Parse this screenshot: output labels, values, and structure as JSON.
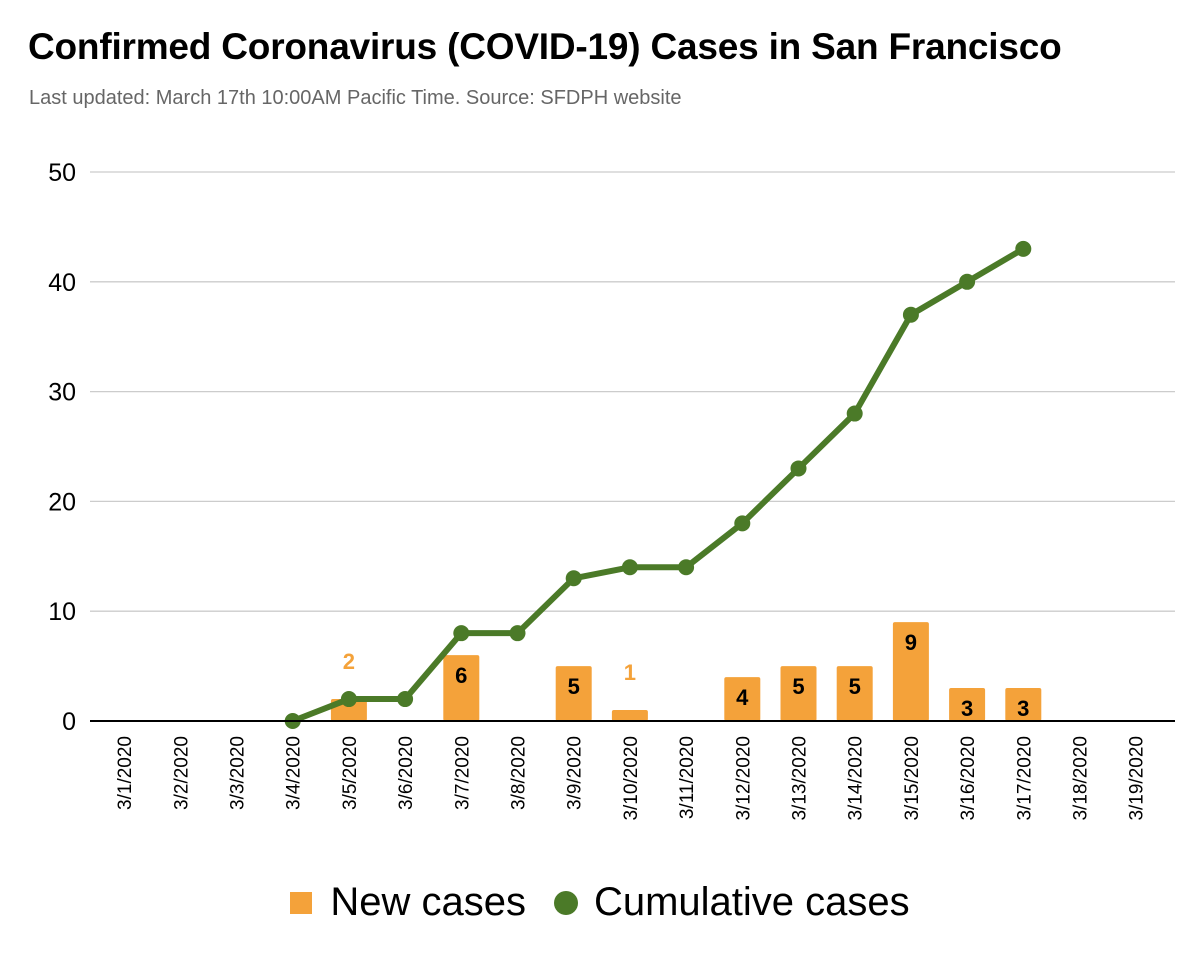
{
  "title": "Confirmed Coronavirus (COVID-19) Cases in San Francisco",
  "subtitle": "Last updated: March 17th 10:00AM Pacific Time. Source: SFDPH website",
  "colors": {
    "bar": "#F4A23A",
    "line": "#4B7A28",
    "grid": "#CCCCCC",
    "axis": "#000000",
    "bar_label_inside": "#000000",
    "bar_label_above": "#F4A23A"
  },
  "legend": {
    "position": "bottom",
    "items": [
      {
        "label": "New cases",
        "marker": "square",
        "color": "#F4A23A"
      },
      {
        "label": "Cumulative cases",
        "marker": "circle",
        "color": "#4B7A28"
      }
    ]
  },
  "chart_data": {
    "type": "bar",
    "combo": "bar+line",
    "title": "Confirmed Coronavirus (COVID-19) Cases in San Francisco",
    "subtitle": "Last updated: March 17th 10:00AM Pacific Time. Source: SFDPH website",
    "xlabel": "",
    "ylabel": "",
    "ylim": [
      0,
      50
    ],
    "yticks": [
      0,
      10,
      20,
      30,
      40,
      50
    ],
    "grid": true,
    "legend_position": "bottom",
    "categories": [
      "3/1/2020",
      "3/2/2020",
      "3/3/2020",
      "3/4/2020",
      "3/5/2020",
      "3/6/2020",
      "3/7/2020",
      "3/8/2020",
      "3/9/2020",
      "3/10/2020",
      "3/11/2020",
      "3/12/2020",
      "3/13/2020",
      "3/14/2020",
      "3/15/2020",
      "3/16/2020",
      "3/17/2020",
      "3/18/2020",
      "3/19/2020"
    ],
    "series": [
      {
        "name": "New cases",
        "type": "bar",
        "color": "#F4A23A",
        "values": [
          null,
          null,
          null,
          null,
          2,
          null,
          6,
          null,
          5,
          1,
          null,
          4,
          5,
          5,
          9,
          3,
          3,
          null,
          null
        ],
        "labels_outside": [
          4,
          9
        ]
      },
      {
        "name": "Cumulative cases",
        "type": "line",
        "color": "#4B7A28",
        "values": [
          null,
          null,
          null,
          0,
          2,
          2,
          8,
          8,
          13,
          14,
          14,
          18,
          23,
          28,
          37,
          40,
          43,
          null,
          null
        ]
      }
    ]
  }
}
